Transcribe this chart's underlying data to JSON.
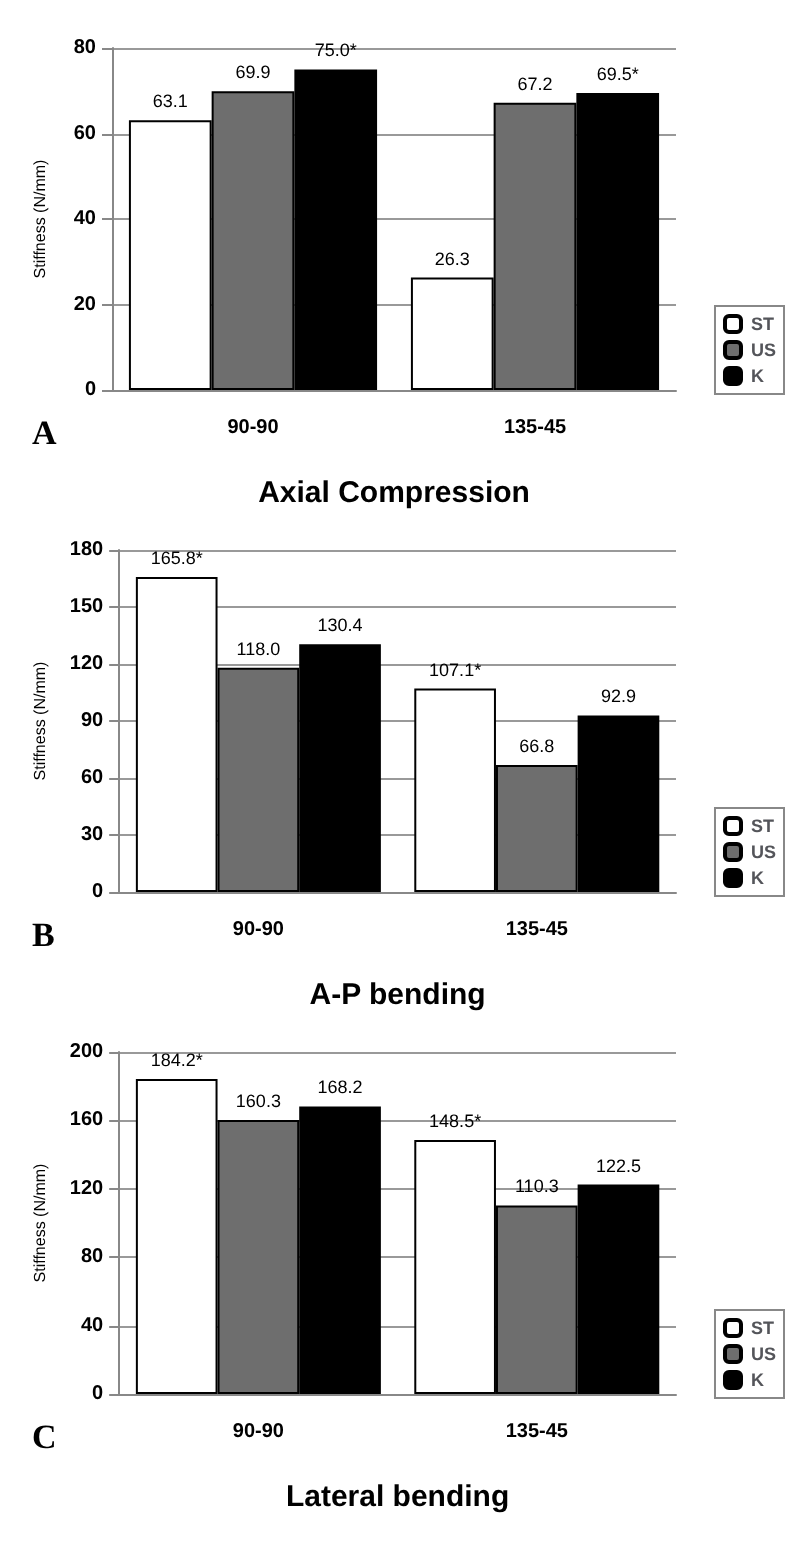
{
  "chart_data": [
    {
      "type": "bar",
      "xlabel": "Axial Compression",
      "ylabel": "Stiffness (N/mm)",
      "categories": [
        "90-90",
        "135-45"
      ],
      "series": [
        {
          "name": "ST",
          "color": "#ffffff",
          "values": [
            63.1,
            26.3
          ],
          "value_labels": [
            "63.1",
            "26.3"
          ]
        },
        {
          "name": "US",
          "color": "#6e6e6e",
          "values": [
            69.9,
            67.2
          ],
          "value_labels": [
            "69.9",
            "67.2"
          ]
        },
        {
          "name": "K",
          "color": "#000000",
          "values": [
            75.0,
            69.5
          ],
          "value_labels": [
            "75.0*",
            "69.5*"
          ]
        }
      ],
      "ylim": [
        0,
        80
      ],
      "yticks": [
        0,
        20,
        40,
        60,
        80
      ],
      "grid": "y",
      "legend": "bottom right",
      "data_labels": true,
      "annotations": [
        "A"
      ]
    },
    {
      "type": "bar",
      "xlabel": "A-P bending",
      "ylabel": "Stiffness (N/mm)",
      "categories": [
        "90-90",
        "135-45"
      ],
      "series": [
        {
          "name": "ST",
          "color": "#ffffff",
          "values": [
            165.8,
            107.1
          ],
          "value_labels": [
            "165.8*",
            "107.1*"
          ]
        },
        {
          "name": "US",
          "color": "#6e6e6e",
          "values": [
            118.0,
            66.8
          ],
          "value_labels": [
            "118.0",
            "66.8"
          ]
        },
        {
          "name": "K",
          "color": "#000000",
          "values": [
            130.4,
            92.9
          ],
          "value_labels": [
            "130.4",
            "92.9"
          ]
        }
      ],
      "ylim": [
        0,
        180
      ],
      "yticks": [
        0,
        30,
        60,
        90,
        120,
        150,
        180
      ],
      "grid": "y",
      "legend": "bottom right",
      "data_labels": true,
      "annotations": [
        "B"
      ]
    },
    {
      "type": "bar",
      "xlabel": "Lateral bending",
      "ylabel": "Stiffness (N/mm)",
      "categories": [
        "90-90",
        "135-45"
      ],
      "series": [
        {
          "name": "ST",
          "color": "#ffffff",
          "values": [
            184.2,
            148.5
          ],
          "value_labels": [
            "184.2*",
            "148.5*"
          ]
        },
        {
          "name": "US",
          "color": "#6e6e6e",
          "values": [
            160.3,
            110.3
          ],
          "value_labels": [
            "160.3",
            "110.3"
          ]
        },
        {
          "name": "K",
          "color": "#000000",
          "values": [
            168.2,
            122.5
          ],
          "value_labels": [
            "168.2",
            "122.5"
          ]
        }
      ],
      "ylim": [
        0,
        200
      ],
      "yticks": [
        0,
        40,
        80,
        120,
        160,
        200
      ],
      "grid": "y",
      "legend": "bottom right",
      "data_labels": true,
      "annotations": [
        "C"
      ]
    }
  ]
}
